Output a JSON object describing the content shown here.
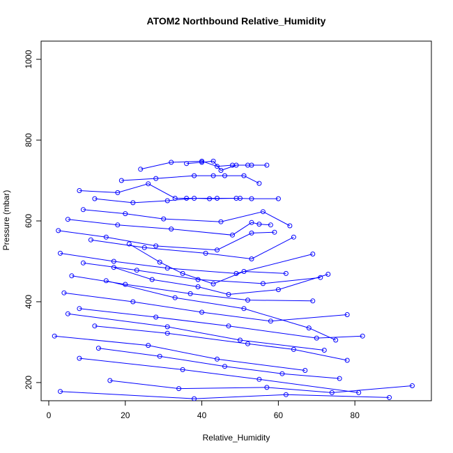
{
  "chart_data": {
    "type": "line",
    "title": "ATOM2 Northbound Relative_Humidity",
    "xlabel": "Relative_Humidity",
    "ylabel": "Pressure (mbar)",
    "xlim": [
      -2,
      100
    ],
    "ylim": [
      1045,
      155
    ],
    "y_inverted": true,
    "x_ticks": [
      0,
      20,
      40,
      60,
      80
    ],
    "y_ticks": [
      200,
      400,
      600,
      800,
      1000
    ],
    "grid": false,
    "legend": "none",
    "color": "#0000ff",
    "marker": "open-circle",
    "series": [
      {
        "x": [
          3,
          38,
          62,
          89
        ],
        "y": [
          178,
          160,
          170,
          163
        ]
      },
      {
        "x": [
          8,
          35,
          55,
          81
        ],
        "y": [
          260,
          232,
          208,
          175
        ]
      },
      {
        "x": [
          1.5,
          26,
          44,
          67
        ],
        "y": [
          315,
          292,
          258,
          230
        ]
      },
      {
        "x": [
          5,
          31,
          50,
          72
        ],
        "y": [
          370,
          338,
          305,
          280
        ]
      },
      {
        "x": [
          8,
          28,
          47,
          70,
          82
        ],
        "y": [
          383,
          362,
          340,
          310,
          315
        ]
      },
      {
        "x": [
          4,
          22,
          40,
          58,
          78
        ],
        "y": [
          422,
          400,
          374,
          352,
          368
        ]
      },
      {
        "x": [
          6,
          20,
          37,
          52,
          69
        ],
        "y": [
          464,
          443,
          420,
          404,
          402
        ]
      },
      {
        "x": [
          9,
          23,
          39,
          56,
          71
        ],
        "y": [
          496,
          478,
          455,
          445,
          460
        ]
      },
      {
        "x": [
          3,
          17,
          31,
          49,
          69
        ],
        "y": [
          520,
          500,
          483,
          470,
          518
        ]
      },
      {
        "x": [
          11,
          25,
          41,
          53,
          64
        ],
        "y": [
          553,
          534,
          520,
          506,
          560
        ]
      },
      {
        "x": [
          2.5,
          15,
          28,
          44,
          53,
          59
        ],
        "y": [
          576,
          560,
          538,
          528,
          570,
          572
        ]
      },
      {
        "x": [
          5,
          18,
          32,
          48,
          53,
          55,
          58
        ],
        "y": [
          604,
          590,
          580,
          565,
          596,
          592,
          590
        ]
      },
      {
        "x": [
          9,
          20,
          30,
          45,
          56,
          63
        ],
        "y": [
          628,
          618,
          605,
          598,
          623,
          588
        ]
      },
      {
        "x": [
          12,
          22,
          31,
          38,
          42,
          49,
          53,
          60
        ],
        "y": [
          655,
          645,
          650,
          656,
          655,
          656,
          655,
          655
        ]
      },
      {
        "x": [
          8,
          18,
          26,
          33,
          36,
          44,
          50
        ],
        "y": [
          675,
          670,
          692,
          656,
          656,
          656,
          656
        ]
      },
      {
        "x": [
          19,
          28,
          38,
          43,
          46,
          51,
          55
        ],
        "y": [
          700,
          705,
          712,
          712,
          712,
          712,
          693
        ]
      },
      {
        "x": [
          24,
          32,
          40,
          44,
          48,
          52,
          57
        ],
        "y": [
          728,
          745,
          748,
          735,
          738,
          738,
          738
        ]
      },
      {
        "x": [
          36,
          40,
          43,
          45,
          49,
          53
        ],
        "y": [
          742,
          745,
          748,
          725,
          738,
          738
        ]
      },
      {
        "x": [
          16,
          34,
          57,
          74,
          95
        ],
        "y": [
          205,
          185,
          188,
          175,
          192
        ]
      },
      {
        "x": [
          13,
          29,
          46,
          61,
          76
        ],
        "y": [
          285,
          265,
          240,
          222,
          210
        ]
      },
      {
        "x": [
          12,
          31,
          52,
          64,
          78
        ],
        "y": [
          340,
          322,
          296,
          282,
          255
        ]
      },
      {
        "x": [
          15,
          33,
          51,
          68,
          75
        ],
        "y": [
          452,
          410,
          383,
          335,
          305
        ]
      },
      {
        "x": [
          17,
          27,
          39,
          47,
          60,
          73
        ],
        "y": [
          485,
          455,
          437,
          418,
          430,
          468
        ]
      },
      {
        "x": [
          21,
          29,
          35,
          43,
          51,
          62
        ],
        "y": [
          543,
          498,
          470,
          444,
          475,
          470
        ]
      }
    ]
  }
}
